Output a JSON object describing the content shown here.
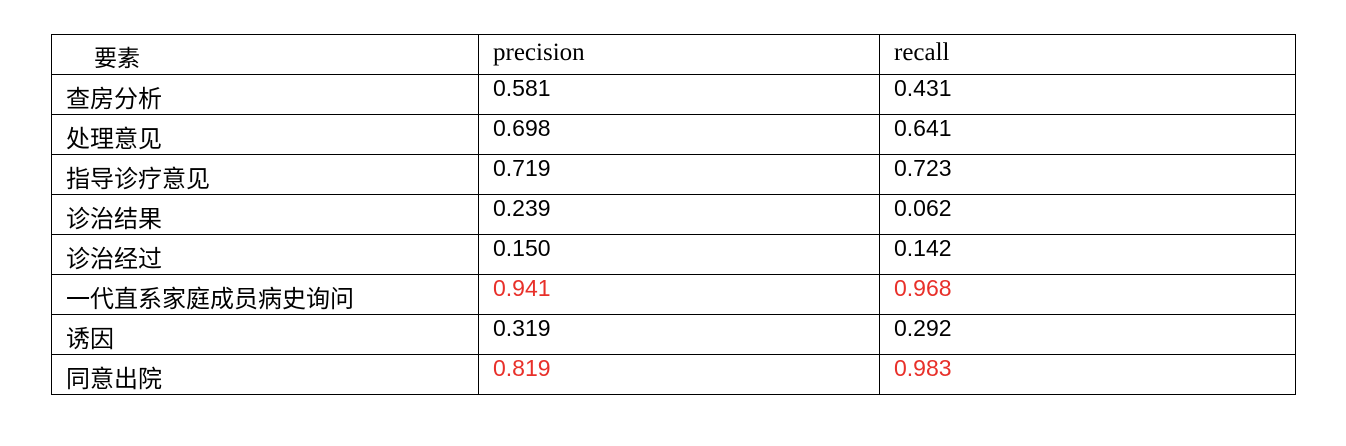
{
  "table": {
    "headers": [
      "要素",
      "precision",
      "recall"
    ],
    "rows": [
      {
        "element": "查房分析",
        "precision": "0.581",
        "recall": "0.431",
        "highlight": false
      },
      {
        "element": "处理意见",
        "precision": "0.698",
        "recall": "0.641",
        "highlight": false
      },
      {
        "element": "指导诊疗意见",
        "precision": "0.719",
        "recall": "0.723",
        "highlight": false
      },
      {
        "element": "诊治结果",
        "precision": "0.239",
        "recall": "0.062",
        "highlight": false
      },
      {
        "element": "诊治经过",
        "precision": "0.150",
        "recall": "0.142",
        "highlight": false
      },
      {
        "element": "一代直系家庭成员病史询问",
        "precision": "0.941",
        "recall": "0.968",
        "highlight": true
      },
      {
        "element": "诱因",
        "precision": "0.319",
        "recall": "0.292",
        "highlight": false
      },
      {
        "element": "同意出院",
        "precision": "0.819",
        "recall": "0.983",
        "highlight": true
      }
    ]
  },
  "colors": {
    "highlight": "#e8302a",
    "text": "#000000",
    "border": "#000000"
  }
}
